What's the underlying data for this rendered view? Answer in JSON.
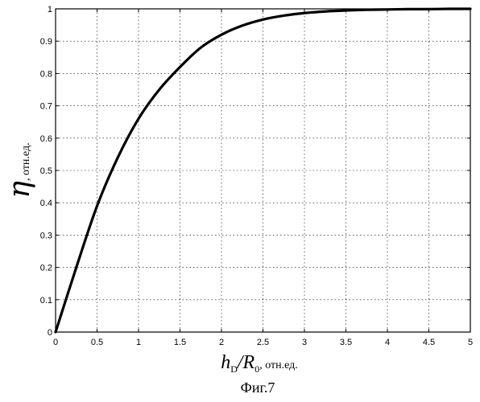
{
  "chart_data": {
    "type": "line",
    "title": "",
    "xlim": [
      0,
      5
    ],
    "ylim": [
      0,
      1
    ],
    "grid": true,
    "xticks": [
      0,
      0.5,
      1,
      1.5,
      2,
      2.5,
      3,
      3.5,
      4,
      4.5,
      5
    ],
    "xtick_labels": [
      "0",
      "0.5",
      "1",
      "1.5",
      "2",
      "2.5",
      "3",
      "3.5",
      "4",
      "4.5",
      "5"
    ],
    "yticks": [
      0,
      0.1,
      0.2,
      0.3,
      0.4,
      0.5,
      0.6,
      0.7,
      0.8,
      0.9,
      1
    ],
    "ytick_labels": [
      "0",
      "0.1",
      "0.2",
      "0.3",
      "0.4",
      "0.5",
      "0.6",
      "0.7",
      "0.8",
      "0.9",
      "1"
    ],
    "ylabel": {
      "symbol": "η",
      "unit": ", отн.ед."
    },
    "xlabel": {
      "h": "h",
      "h_sub": "D",
      "slash": "/",
      "r": "R",
      "r_sub": "0",
      "unit": ", отн.ед."
    },
    "series": [
      {
        "x": [
          0,
          0.25,
          0.5,
          0.75,
          1,
          1.25,
          1.5,
          1.75,
          2,
          2.25,
          2.5,
          2.75,
          3,
          3.25,
          3.5,
          3.75,
          4,
          4.25,
          4.5,
          4.75,
          5
        ],
        "values": [
          0,
          0.2,
          0.39,
          0.54,
          0.66,
          0.75,
          0.82,
          0.88,
          0.92,
          0.948,
          0.967,
          0.979,
          0.987,
          0.992,
          0.995,
          0.997,
          0.998,
          0.999,
          0.999,
          1,
          1
        ]
      }
    ]
  },
  "caption": "Фиг.7"
}
